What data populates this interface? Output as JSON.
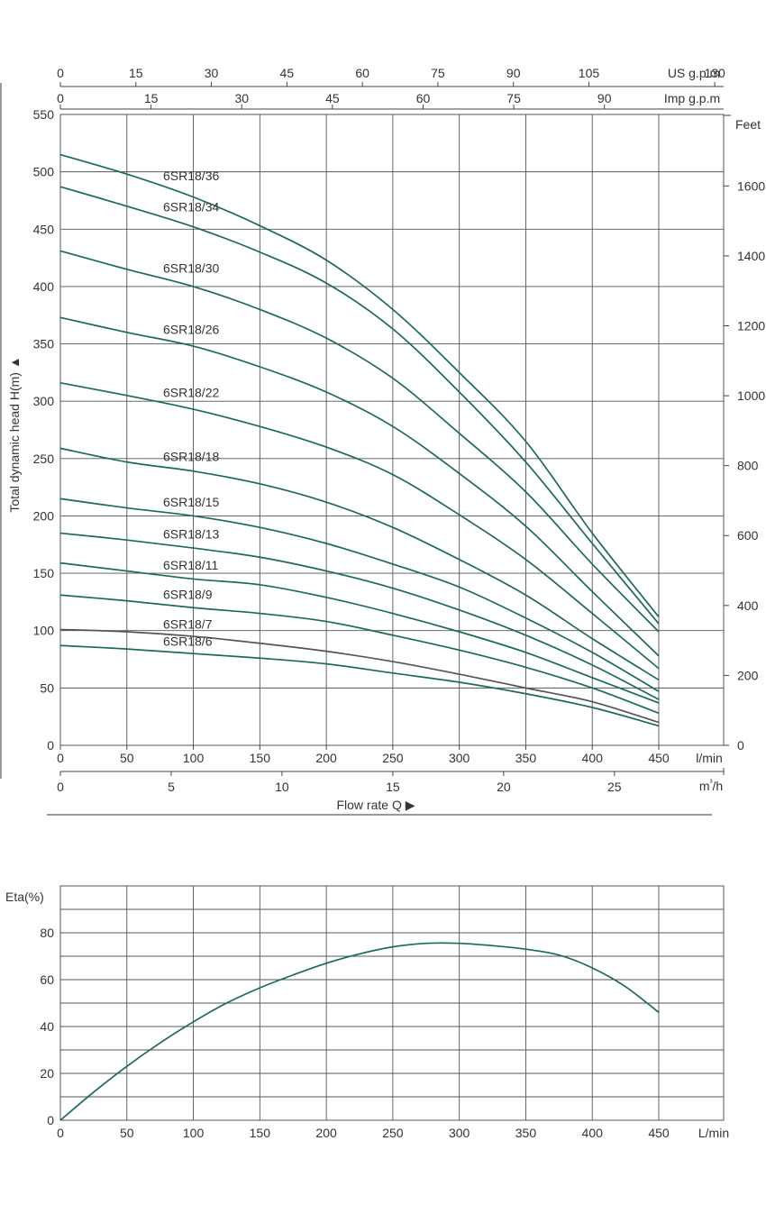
{
  "colors": {
    "curve": "#1a6b57",
    "thin_curve": "#555555",
    "grid": "#555555",
    "text": "#333333"
  },
  "chart_data": [
    {
      "type": "line",
      "ylabel": "Total dynamic head H(m) ▲",
      "xlabel": "Flow rate Q ▶",
      "xlim": [
        0,
        450
      ],
      "ylim": [
        0,
        550
      ],
      "x_ticks": [
        0,
        50,
        100,
        150,
        200,
        250,
        300,
        350,
        400,
        450
      ],
      "x_unit": "l/min",
      "y_ticks": [
        0,
        50,
        100,
        150,
        200,
        250,
        300,
        350,
        400,
        450,
        500,
        550
      ],
      "grid": true,
      "secondary_axes": {
        "us_gpm": {
          "label": "US g.p.m",
          "ticks": [
            0,
            15,
            30,
            45,
            60,
            75,
            90,
            105,
            130
          ]
        },
        "imp_gpm": {
          "label": "Imp g.p.m",
          "ticks": [
            0,
            15,
            30,
            45,
            60,
            75,
            90
          ]
        },
        "m3h": {
          "label": "m³/h",
          "ticks": [
            0,
            5,
            10,
            15,
            20,
            25
          ]
        },
        "feet": {
          "label": "Feet",
          "ticks": [
            0,
            200,
            400,
            600,
            800,
            1000,
            1200,
            1400,
            1600
          ]
        }
      },
      "x": [
        0,
        50,
        100,
        150,
        200,
        250,
        300,
        350,
        400,
        450
      ],
      "series": [
        {
          "name": "6SR18/36",
          "values": [
            515,
            498,
            478,
            453,
            423,
            380,
            325,
            265,
            185,
            112
          ]
        },
        {
          "name": "6SR18/34",
          "values": [
            487,
            470,
            452,
            430,
            403,
            363,
            308,
            247,
            176,
            106
          ]
        },
        {
          "name": "6SR18/30",
          "values": [
            431,
            415,
            400,
            380,
            355,
            320,
            272,
            221,
            158,
            99
          ]
        },
        {
          "name": "6SR18/26",
          "values": [
            373,
            360,
            348,
            330,
            308,
            278,
            237,
            191,
            134,
            78
          ]
        },
        {
          "name": "6SR18/22",
          "values": [
            316,
            305,
            293,
            278,
            260,
            236,
            201,
            162,
            115,
            67
          ]
        },
        {
          "name": "6SR18/18",
          "values": [
            259,
            247,
            239,
            228,
            212,
            190,
            162,
            131,
            93,
            57
          ]
        },
        {
          "name": "6SR18/15",
          "values": [
            215,
            207,
            200,
            190,
            176,
            158,
            138,
            111,
            81,
            47
          ]
        },
        {
          "name": "6SR18/13",
          "values": [
            185,
            179,
            172,
            164,
            152,
            137,
            118,
            96,
            70,
            40
          ]
        },
        {
          "name": "6SR18/11",
          "values": [
            159,
            152,
            145,
            140,
            129,
            115,
            99,
            81,
            59,
            37
          ]
        },
        {
          "name": "6SR18/9",
          "values": [
            131,
            126,
            120,
            115,
            108,
            96,
            83,
            68,
            50,
            28
          ]
        },
        {
          "name": "6SR18/7",
          "values": [
            101,
            99,
            95,
            89,
            82,
            73,
            62,
            50,
            38,
            20
          ]
        },
        {
          "name": "6SR18/6",
          "values": [
            87,
            84,
            80,
            76,
            71,
            63,
            55,
            45,
            33,
            17
          ]
        }
      ]
    },
    {
      "type": "line",
      "ylabel": "Eta(%)",
      "xlabel": "L/min",
      "xlim": [
        0,
        450
      ],
      "ylim": [
        0,
        100
      ],
      "x_ticks": [
        0,
        50,
        100,
        150,
        200,
        250,
        300,
        350,
        400,
        450
      ],
      "y_ticks": [
        0,
        20,
        40,
        60,
        80
      ],
      "grid": true,
      "x": [
        0,
        25,
        50,
        75,
        100,
        125,
        150,
        175,
        200,
        225,
        250,
        275,
        300,
        325,
        350,
        375,
        400,
        425,
        450
      ],
      "series": [
        {
          "name": "",
          "values": [
            0,
            12,
            23,
            33,
            42,
            50,
            56.5,
            62,
            67,
            71,
            74,
            75.5,
            75.5,
            74.5,
            73,
            70.5,
            65,
            57,
            46
          ]
        }
      ]
    }
  ]
}
